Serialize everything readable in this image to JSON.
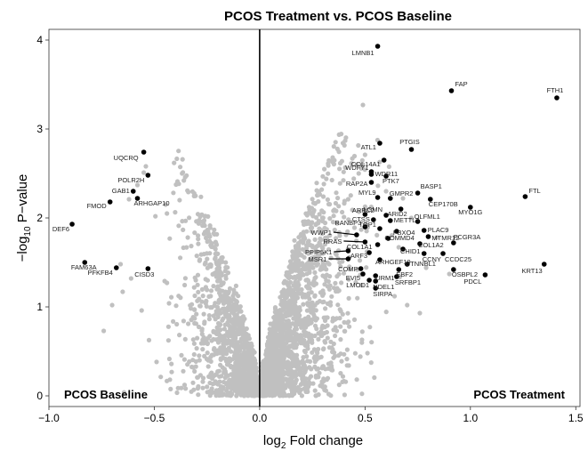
{
  "chart_data": {
    "type": "scatter",
    "title": "PCOS Treatment vs. PCOS Baseline",
    "xlabel_prefix": "log",
    "xlabel_sub": "2",
    "xlabel_suffix": " Fold change",
    "ylabel_prefix": "−log",
    "ylabel_sub": "10",
    "ylabel_suffix": " P−value",
    "xlim": [
      -1.0,
      1.52
    ],
    "ylim": [
      -0.12,
      4.12
    ],
    "xticks": [
      -1.0,
      -0.5,
      0.0,
      0.5,
      1.0,
      1.5
    ],
    "xtick_labels": [
      "−1.0",
      "−0.5",
      "0.0",
      "0.5",
      "1.0",
      "1.5"
    ],
    "yticks": [
      0,
      1,
      2,
      3,
      4
    ],
    "ytick_labels": [
      "0",
      "1",
      "2",
      "3",
      "4"
    ],
    "grid": false,
    "vline_x": 0,
    "region_labels": {
      "left": "PCOS Baseline",
      "right": "PCOS Treatment"
    },
    "colors": {
      "background_point": "#c0c0c0",
      "highlight_point": "#000000"
    },
    "background_cloud": {
      "n": 2800,
      "description_color": "#c0c0c0"
    },
    "background_points": [
      {
        "x": -0.58,
        "y": 2.37
      },
      {
        "x": -0.55,
        "y": 2.51
      },
      {
        "x": -0.54,
        "y": 2.58
      },
      {
        "x": -0.39,
        "y": 2.41
      },
      {
        "x": -0.38,
        "y": 2.2
      },
      {
        "x": -0.62,
        "y": 2.21
      },
      {
        "x": -0.44,
        "y": 2.05
      },
      {
        "x": -0.66,
        "y": 1.48
      },
      {
        "x": -0.61,
        "y": 1.32
      },
      {
        "x": -0.65,
        "y": 1.17
      },
      {
        "x": -0.43,
        "y": 1.04
      },
      {
        "x": -0.7,
        "y": 1.02
      },
      {
        "x": -0.44,
        "y": 1.27
      },
      {
        "x": -0.74,
        "y": 0.73
      },
      {
        "x": -0.56,
        "y": 0.96
      },
      {
        "x": 0.25,
        "y": 1.02
      },
      {
        "x": 0.3,
        "y": 1.35
      },
      {
        "x": 0.36,
        "y": 1.6
      },
      {
        "x": 0.4,
        "y": 2.01
      },
      {
        "x": 0.42,
        "y": 2.21
      },
      {
        "x": 0.47,
        "y": 2.5
      },
      {
        "x": 0.49,
        "y": 3.27
      },
      {
        "x": 0.44,
        "y": 2.09
      },
      {
        "x": 0.49,
        "y": 2.6
      },
      {
        "x": 0.5,
        "y": 2.71
      },
      {
        "x": 0.45,
        "y": 1.89
      },
      {
        "x": 0.33,
        "y": 1.48
      },
      {
        "x": 0.38,
        "y": 1.8
      },
      {
        "x": 0.64,
        "y": 1.12
      },
      {
        "x": 0.7,
        "y": 1.02
      },
      {
        "x": 0.76,
        "y": 0.93
      },
      {
        "x": 0.6,
        "y": 2.3
      },
      {
        "x": 0.68,
        "y": 2.22
      },
      {
        "x": 0.72,
        "y": 2.0
      },
      {
        "x": 0.84,
        "y": 1.78
      },
      {
        "x": 0.66,
        "y": 1.67
      },
      {
        "x": 0.9,
        "y": 1.37
      },
      {
        "x": 0.79,
        "y": 1.44
      }
    ],
    "highlighted_genes": [
      {
        "label": "LMNB1",
        "x": 0.56,
        "y": 3.93
      },
      {
        "label": "FAP",
        "x": 0.91,
        "y": 3.43
      },
      {
        "label": "FTH1",
        "x": 1.41,
        "y": 3.35
      },
      {
        "label": "PTGIS",
        "x": 0.72,
        "y": 2.77
      },
      {
        "label": "ATL1",
        "x": 0.57,
        "y": 2.84
      },
      {
        "label": "COL14A1",
        "x": 0.59,
        "y": 2.65
      },
      {
        "label": "UQCRQ",
        "x": -0.55,
        "y": 2.74
      },
      {
        "label": "POLR2H",
        "x": -0.53,
        "y": 2.48
      },
      {
        "label": "GAB1",
        "x": -0.6,
        "y": 2.3
      },
      {
        "label": "ARHGAP10",
        "x": -0.58,
        "y": 2.22
      },
      {
        "label": "FMOD",
        "x": -0.71,
        "y": 2.18
      },
      {
        "label": "DEF6",
        "x": -0.89,
        "y": 1.93
      },
      {
        "label": "FAM63A",
        "x": -0.83,
        "y": 1.5
      },
      {
        "label": "PFKFB4",
        "x": -0.68,
        "y": 1.44
      },
      {
        "label": "CISD3",
        "x": -0.53,
        "y": 1.43
      },
      {
        "label": "WDFY1",
        "x": 0.53,
        "y": 2.52
      },
      {
        "label": "WDR11",
        "x": 0.53,
        "y": 2.49
      },
      {
        "label": "PTK7",
        "x": 0.6,
        "y": 2.47
      },
      {
        "label": "RAP2A",
        "x": 0.53,
        "y": 2.4
      },
      {
        "label": "BASP1",
        "x": 0.75,
        "y": 2.28
      },
      {
        "label": "MYL9",
        "x": 0.56,
        "y": 2.23
      },
      {
        "label": "GMPR2",
        "x": 0.62,
        "y": 2.22
      },
      {
        "label": "CEP170B",
        "x": 0.81,
        "y": 2.21
      },
      {
        "label": "FTL",
        "x": 1.26,
        "y": 2.24
      },
      {
        "label": "MYO1G",
        "x": 1.0,
        "y": 2.12
      },
      {
        "label": "ARID2",
        "x": 0.67,
        "y": 2.1
      },
      {
        "label": "ARPC2",
        "x": 0.5,
        "y": 2.04
      },
      {
        "label": "LGMN",
        "x": 0.6,
        "y": 2.03
      },
      {
        "label": "CTSS",
        "x": 0.54,
        "y": 1.98
      },
      {
        "label": "METTL3",
        "x": 0.62,
        "y": 1.97
      },
      {
        "label": "OLFML1",
        "x": 0.75,
        "y": 1.96
      },
      {
        "label": "RANBP3",
        "x": 0.5,
        "y": 1.9
      },
      {
        "label": "TOP1",
        "x": 0.57,
        "y": 1.88
      },
      {
        "label": "PLAC9",
        "x": 0.78,
        "y": 1.86
      },
      {
        "label": "FBXO4",
        "x": 0.65,
        "y": 1.85
      },
      {
        "label": "WWP1",
        "x": 0.46,
        "y": 1.81
      },
      {
        "label": "MTMR12",
        "x": 0.8,
        "y": 1.79
      },
      {
        "label": "COMMD4",
        "x": 0.61,
        "y": 1.77
      },
      {
        "label": "RRAS",
        "x": 0.5,
        "y": 1.73
      },
      {
        "label": "FCGR3A",
        "x": 0.92,
        "y": 1.72
      },
      {
        "label": "COL1A2",
        "x": 0.76,
        "y": 1.71
      },
      {
        "label": "COL1A1",
        "x": 0.56,
        "y": 1.7
      },
      {
        "label": "CHID1",
        "x": 0.68,
        "y": 1.65
      },
      {
        "label": "PPIP5K1",
        "x": 0.42,
        "y": 1.63
      },
      {
        "label": "ARF3",
        "x": 0.52,
        "y": 1.61
      },
      {
        "label": "CCNY",
        "x": 0.78,
        "y": 1.6
      },
      {
        "label": "CCDC25",
        "x": 0.87,
        "y": 1.6
      },
      {
        "label": "MSR1",
        "x": 0.42,
        "y": 1.54
      },
      {
        "label": "ARHGEF10",
        "x": 0.57,
        "y": 1.53
      },
      {
        "label": "CTNNBL1",
        "x": 0.7,
        "y": 1.48
      },
      {
        "label": "KRT13",
        "x": 1.35,
        "y": 1.48
      },
      {
        "label": "COMP",
        "x": 0.48,
        "y": 1.43
      },
      {
        "label": "EBF2",
        "x": 0.66,
        "y": 1.42
      },
      {
        "label": "OSBPL2",
        "x": 0.92,
        "y": 1.42
      },
      {
        "label": "EVI5",
        "x": 0.49,
        "y": 1.37
      },
      {
        "label": "URM1",
        "x": 0.55,
        "y": 1.35
      },
      {
        "label": "PDCL",
        "x": 1.07,
        "y": 1.36
      },
      {
        "label": "SRFBP1",
        "x": 0.65,
        "y": 1.34
      },
      {
        "label": "LMOD1",
        "x": 0.52,
        "y": 1.3
      },
      {
        "label": "NDEL1",
        "x": 0.55,
        "y": 1.29
      },
      {
        "label": "SIRPA",
        "x": 0.55,
        "y": 1.21
      }
    ]
  }
}
